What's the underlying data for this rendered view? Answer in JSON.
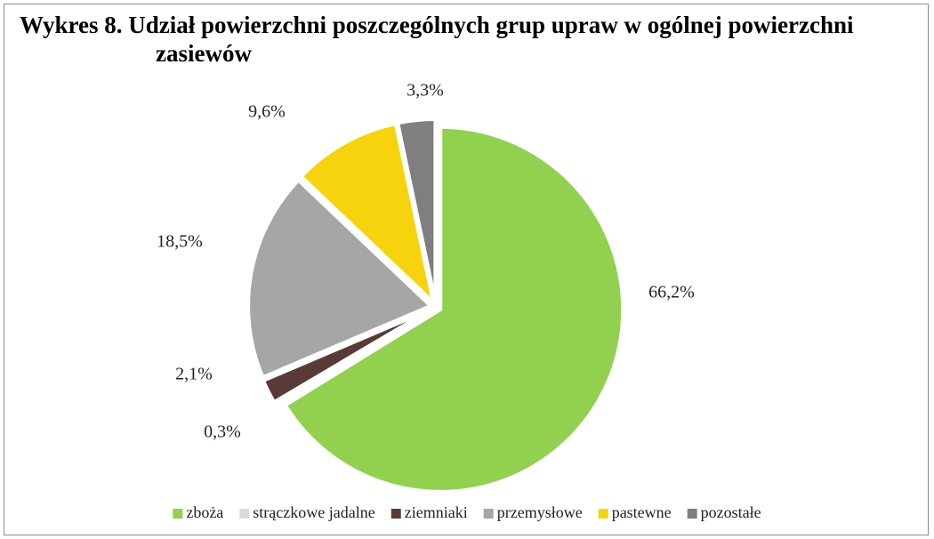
{
  "chart_data": {
    "type": "pie",
    "title": "Wykres 8. Udział powierzchni poszczególnych grup upraw w ogólnej powierzchni zasiewów",
    "categories": [
      "zboża",
      "strączkowe jadalne",
      "ziemniaki",
      "przemysłowe",
      "pastewne",
      "pozostałe"
    ],
    "values": [
      66.2,
      0.3,
      2.1,
      18.5,
      9.6,
      3.3
    ],
    "value_labels": [
      "66,2%",
      "0,3%",
      "2,1%",
      "18,5%",
      "9,6%",
      "3,3%"
    ],
    "colors": [
      "#92d050",
      "#d9d9d9",
      "#5a3a36",
      "#a6a6a6",
      "#f7d30d",
      "#7f7f7f"
    ],
    "legend": "bottom"
  }
}
